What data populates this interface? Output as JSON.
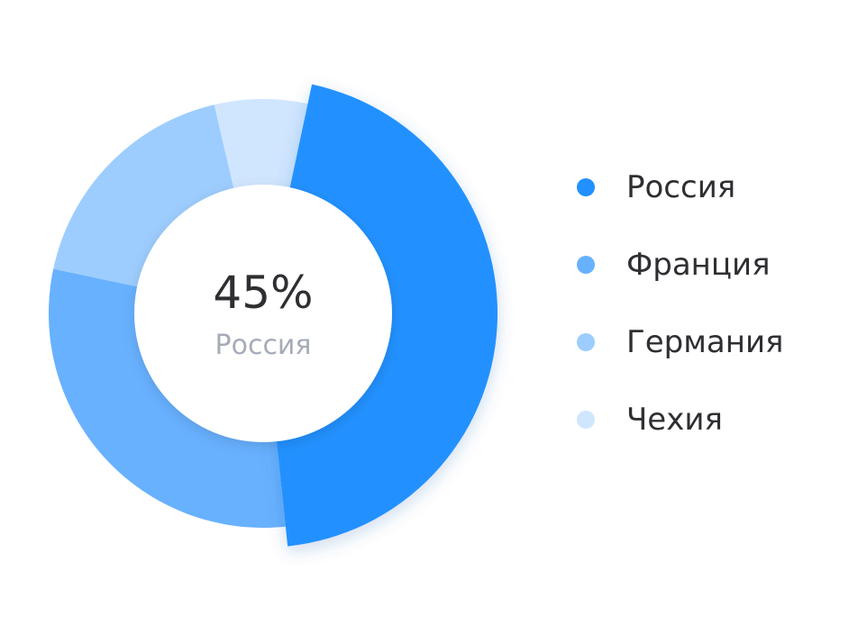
{
  "chart_data": {
    "type": "pie",
    "categories": [
      "Россия",
      "Франция",
      "Германия",
      "Чехия"
    ],
    "values": [
      45,
      30,
      18,
      7
    ],
    "colors": [
      "#2291ff",
      "#68b1ff",
      "#9dcdfe",
      "#d0e6ff"
    ],
    "center_value": "45%",
    "center_label": "Россия",
    "highlighted_category": "Россия",
    "legend_position": "right"
  }
}
